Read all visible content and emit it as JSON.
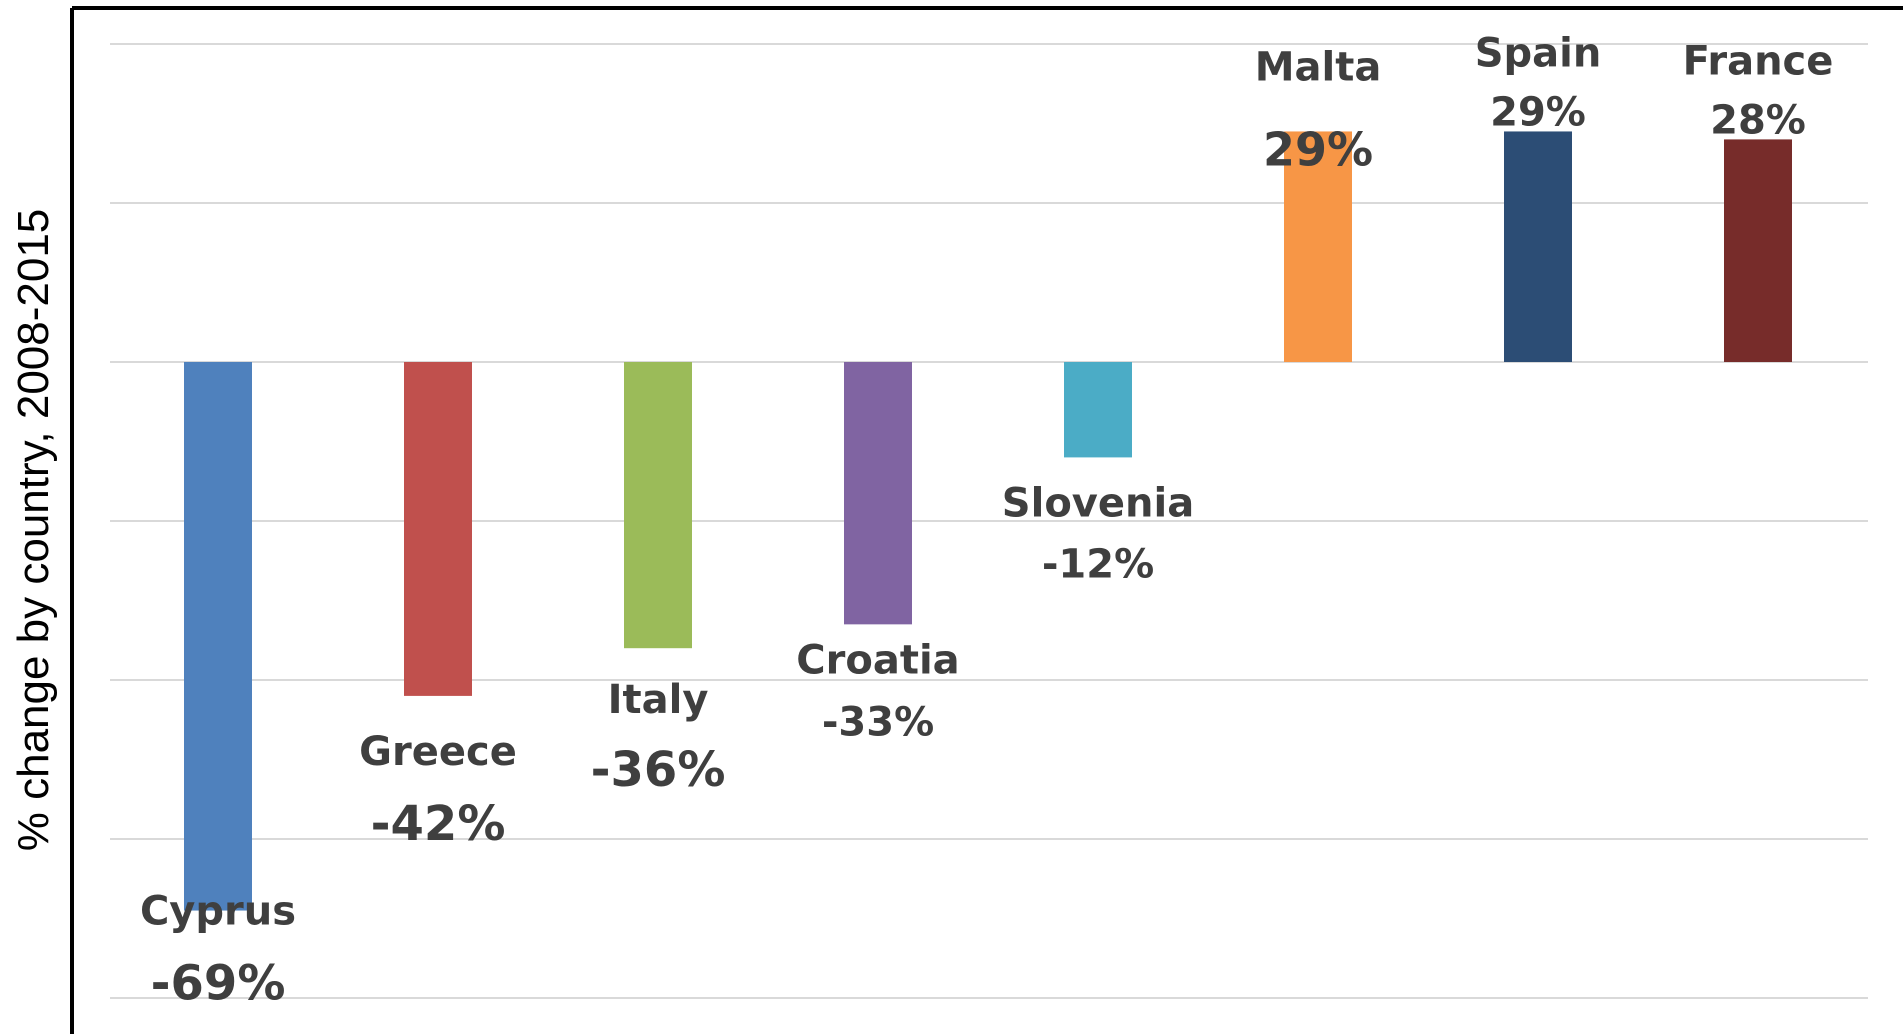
{
  "chart_data": {
    "type": "bar",
    "title": "",
    "xlabel": "",
    "ylabel": "% change by country, 2008-2015",
    "ylim": [
      -80,
      40
    ],
    "grid_step": 20,
    "grid": true,
    "categories": [
      "Cyprus",
      "Greece",
      "Italy",
      "Croatia",
      "Slovenia",
      "Malta",
      "Spain",
      "France"
    ],
    "values": [
      -69,
      -42,
      -36,
      -33,
      -12,
      29,
      29,
      28
    ],
    "data_labels": [
      "-69%",
      "-42%",
      "-36%",
      "-33%",
      "-12%",
      "29%",
      "29%",
      "28%"
    ],
    "colors": [
      "#4f81bd",
      "#c0504d",
      "#9bbb59",
      "#8064a2",
      "#4bacc6",
      "#f79646",
      "#2c4d75",
      "#772c2a"
    ]
  }
}
